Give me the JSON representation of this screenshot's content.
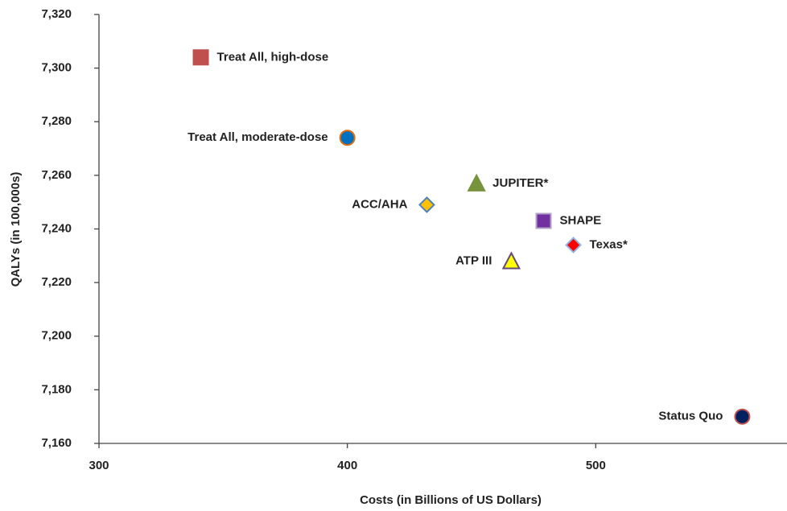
{
  "chart_data": {
    "type": "scatter",
    "xlabel": "Costs (in Billions of US Dollars)",
    "ylabel": "QALYs (in 100,000s)",
    "xlim": [
      300,
      577
    ],
    "ylim": [
      7160,
      7320
    ],
    "xticks": [
      300,
      400,
      500
    ],
    "yticks": [
      {
        "value": 7160,
        "label": "7,160"
      },
      {
        "value": 7180,
        "label": "7,180"
      },
      {
        "value": 7200,
        "label": "7,200"
      },
      {
        "value": 7220,
        "label": "7,220"
      },
      {
        "value": 7240,
        "label": "7,240"
      },
      {
        "value": 7260,
        "label": "7,260"
      },
      {
        "value": 7280,
        "label": "7,280"
      },
      {
        "value": 7300,
        "label": "7,300"
      },
      {
        "value": 7320,
        "label": "7,320"
      }
    ],
    "grid": false,
    "series": [
      {
        "name": "Treat All, high-dose",
        "marker": "square",
        "color": "#c0504d",
        "edgecolor": "#c0504d",
        "x": [
          341
        ],
        "values": [
          7304
        ]
      },
      {
        "name": "Treat All, moderate-dose",
        "marker": "circle",
        "color": "#0070c0",
        "edgecolor": "#e46c0a",
        "x": [
          400
        ],
        "values": [
          7274
        ]
      },
      {
        "name": "JUPITER*",
        "marker": "triangle",
        "color": "#77933c",
        "edgecolor": "#77933c",
        "x": [
          452
        ],
        "values": [
          7257
        ]
      },
      {
        "name": "ACC/AHA",
        "marker": "diamond",
        "color": "#ffc000",
        "edgecolor": "#4f81bd",
        "x": [
          432
        ],
        "values": [
          7249
        ]
      },
      {
        "name": "SHAPE",
        "marker": "square",
        "color": "#7030a0",
        "edgecolor": "#b3a2c7",
        "x": [
          479
        ],
        "values": [
          7243
        ]
      },
      {
        "name": "Texas*",
        "marker": "diamond",
        "color": "#ff0000",
        "edgecolor": "#8eb4e3",
        "x": [
          491
        ],
        "values": [
          7234
        ]
      },
      {
        "name": "ATP III",
        "marker": "triangle",
        "color": "#ffff00",
        "edgecolor": "#604a7b",
        "x": [
          466
        ],
        "values": [
          7228
        ]
      },
      {
        "name": "Status Quo",
        "marker": "circle",
        "color": "#002060",
        "edgecolor": "#c0504d",
        "x": [
          559
        ],
        "values": [
          7170
        ]
      }
    ]
  }
}
